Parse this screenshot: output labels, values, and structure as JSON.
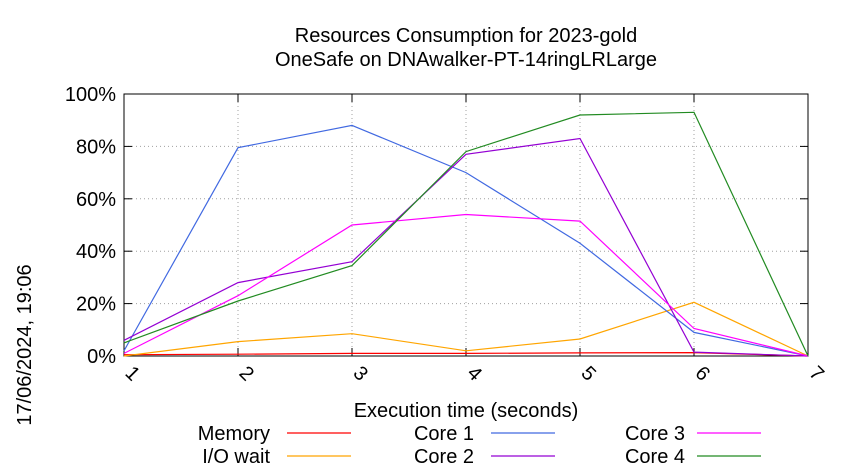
{
  "chart_data": {
    "type": "line",
    "title": "Resources Consumption for 2023-gold",
    "subtitle": "OneSafe on DNAwalker-PT-14ringLRLarge",
    "xlabel": "Execution time (seconds)",
    "ylabel": "",
    "side_label": "17/06/2024, 19:06",
    "xlim": [
      1,
      7
    ],
    "ylim": [
      0,
      100
    ],
    "x_ticks": [
      "1",
      "2",
      "3",
      "4",
      "5",
      "6",
      "7"
    ],
    "y_ticks": [
      "0%",
      "20%",
      "40%",
      "60%",
      "80%",
      "100%"
    ],
    "grid": true,
    "legend_position": "bottom",
    "x": [
      1,
      2,
      3,
      4,
      5,
      6,
      7
    ],
    "series": [
      {
        "name": "Memory",
        "color": "#ff0000",
        "values": [
          0.5,
          0.7,
          1.0,
          1.0,
          1.2,
          1.3,
          0
        ]
      },
      {
        "name": "I/O wait",
        "color": "#ffa500",
        "values": [
          0,
          5.5,
          8.5,
          2.0,
          6.5,
          20.5,
          0
        ]
      },
      {
        "name": "Core 1",
        "color": "#4169e1",
        "values": [
          2,
          79.5,
          88,
          70,
          43,
          9,
          0
        ]
      },
      {
        "name": "Core 2",
        "color": "#9400d3",
        "values": [
          6,
          28,
          36,
          77,
          83,
          1.5,
          0
        ]
      },
      {
        "name": "Core 3",
        "color": "#ff00ff",
        "values": [
          1,
          23,
          50,
          54,
          51.5,
          10.5,
          0
        ]
      },
      {
        "name": "Core 4",
        "color": "#228b22",
        "values": [
          5,
          21,
          34.5,
          78,
          92,
          93,
          0
        ]
      }
    ]
  }
}
